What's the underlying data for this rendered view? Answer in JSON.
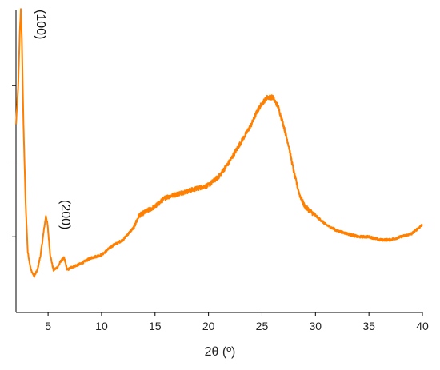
{
  "chart_data": {
    "type": "line",
    "title": "",
    "xlabel": "2θ (º)",
    "ylabel": "",
    "xlim": [
      2,
      40
    ],
    "ylim": [
      0,
      100
    ],
    "x_ticks": [
      5,
      10,
      15,
      20,
      25,
      30,
      35,
      40
    ],
    "y_ticks_labeled": false,
    "grid": false,
    "legend": "none",
    "series_color": "#ff8000",
    "annotations": [
      {
        "text": "(100)",
        "x": 2.6,
        "rotated": true
      },
      {
        "text": "(200)",
        "x": 4.9,
        "rotated": true
      }
    ],
    "series": [
      {
        "values": [
          [
            2.0,
            62
          ],
          [
            2.2,
            74
          ],
          [
            2.35,
            92
          ],
          [
            2.45,
            100
          ],
          [
            2.55,
            90
          ],
          [
            2.7,
            62
          ],
          [
            2.9,
            36
          ],
          [
            3.1,
            20
          ],
          [
            3.4,
            14
          ],
          [
            3.7,
            12
          ],
          [
            4.0,
            14
          ],
          [
            4.3,
            19
          ],
          [
            4.6,
            27
          ],
          [
            4.8,
            32
          ],
          [
            4.95,
            29
          ],
          [
            5.2,
            19
          ],
          [
            5.5,
            14
          ],
          [
            5.9,
            15
          ],
          [
            6.2,
            17
          ],
          [
            6.5,
            18
          ],
          [
            6.8,
            14
          ],
          [
            7.2,
            15
          ],
          [
            8.0,
            16
          ],
          [
            9.0,
            18
          ],
          [
            10.0,
            19
          ],
          [
            11.0,
            22
          ],
          [
            12.0,
            24
          ],
          [
            13.0,
            28
          ],
          [
            13.5,
            32
          ],
          [
            14.0,
            33
          ],
          [
            15.0,
            35
          ],
          [
            16.0,
            38
          ],
          [
            17.0,
            39
          ],
          [
            18.0,
            40
          ],
          [
            19.0,
            41
          ],
          [
            20.0,
            42
          ],
          [
            21.0,
            45
          ],
          [
            22.0,
            50
          ],
          [
            23.0,
            56
          ],
          [
            24.0,
            62
          ],
          [
            24.5,
            66
          ],
          [
            25.0,
            69
          ],
          [
            25.5,
            71
          ],
          [
            26.0,
            71
          ],
          [
            26.5,
            68
          ],
          [
            27.0,
            62
          ],
          [
            27.5,
            55
          ],
          [
            28.0,
            46
          ],
          [
            28.5,
            39
          ],
          [
            29.0,
            35
          ],
          [
            30.0,
            32
          ],
          [
            31.0,
            29
          ],
          [
            32.0,
            27
          ],
          [
            33.0,
            26
          ],
          [
            34.0,
            25
          ],
          [
            35.0,
            25
          ],
          [
            36.0,
            24
          ],
          [
            37.0,
            24
          ],
          [
            38.0,
            25
          ],
          [
            39.0,
            26
          ],
          [
            40.0,
            29
          ]
        ]
      }
    ]
  }
}
